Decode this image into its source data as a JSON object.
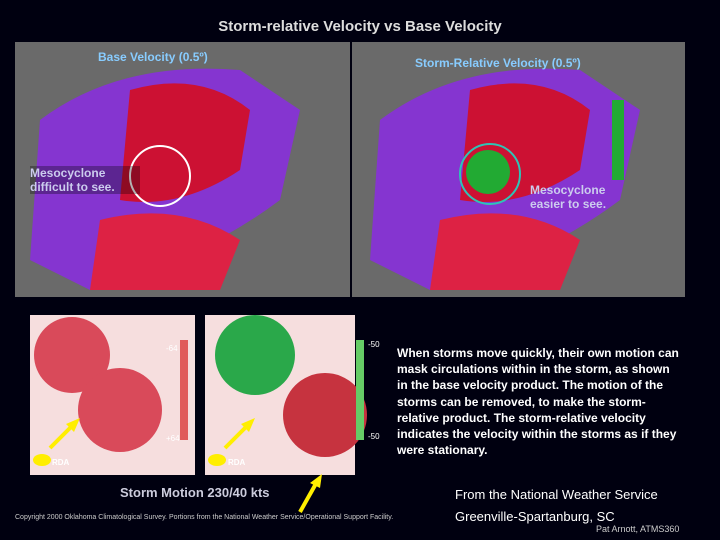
{
  "title": "Storm-relative Velocity vs Base Velocity",
  "panels": {
    "left": {
      "label": "Base Velocity (0.5º)",
      "note": "Mesocyclone difficult to see."
    },
    "right": {
      "label": "Storm-Relative Velocity (0.5º)",
      "note": "Mesocyclone easier to see."
    }
  },
  "diagrams": {
    "left": {
      "scale_top": "-64",
      "scale_bottom": "+64",
      "site": "RDA"
    },
    "right": {
      "scale_top": "-50",
      "scale_bottom": "-50",
      "site": "RDA"
    }
  },
  "paragraph": "When storms move quickly, their own motion can mask circulations within in the storm, as shown in the base velocity product.  The motion of the storms can be removed, to make the storm-relative product.  The storm-relative velocity indicates the velocity within the storms as if they were stationary.",
  "storm_motion": "Storm Motion 230/40 kts",
  "copyright": "Copyright 2000 Oklahoma Climatological Survey. Portions from the National Weather Service/Operational Support Facility.",
  "credit": {
    "line1": "From the National Weather Service",
    "line2": "Greenville-Spartanburg, SC"
  },
  "author": "Pat Arnott, ATMS360"
}
